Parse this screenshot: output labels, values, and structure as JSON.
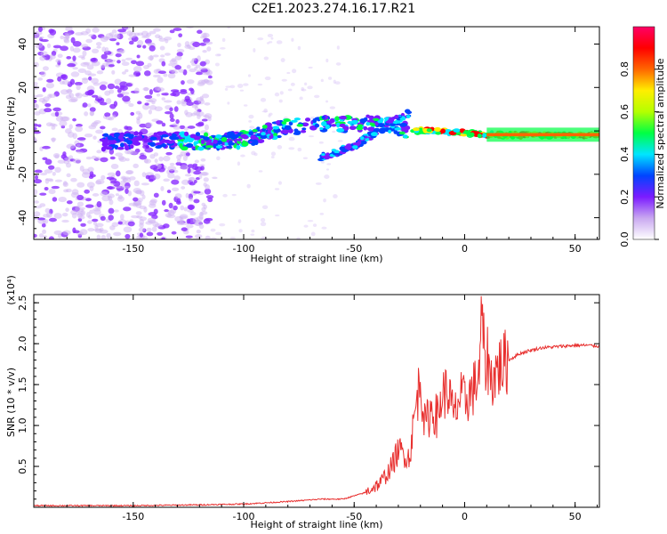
{
  "title": "C2E1.2023.274.16.17.R21",
  "chart_data": [
    {
      "type": "heatmap",
      "xlabel": "Height of straight line (km)",
      "ylabel": "Frequency (Hz)",
      "xlim": [
        -195,
        61
      ],
      "ylim": [
        -50,
        48
      ],
      "xticks": [
        -150,
        -100,
        -50,
        0,
        50
      ],
      "xtick_labels": [
        "-150",
        "-100",
        "-50",
        "0",
        "50"
      ],
      "yticks": [
        -40,
        -20,
        0,
        20,
        40
      ],
      "ytick_labels": [
        "-40",
        "-20",
        "0",
        "20",
        "40"
      ],
      "colorbar": {
        "label": "Normalized spectral amplitude",
        "range": [
          0,
          1
        ],
        "ticks": [
          0.0,
          0.2,
          0.4,
          0.6,
          0.8
        ],
        "tick_labels": [
          "0.0",
          "0.2",
          "0.4",
          "0.6",
          "0.8"
        ],
        "colors": [
          "#ffffff",
          "#c9a8f0",
          "#7b1bff",
          "#0044ff",
          "#00e5ff",
          "#00ff44",
          "#b4ff00",
          "#ffee00",
          "#ff6600",
          "#ff0000",
          "#ff0066"
        ]
      },
      "trace": {
        "x": [
          -160,
          -140,
          -120,
          -100,
          -80,
          -60,
          -40,
          -25,
          -15,
          0,
          20,
          40,
          60
        ],
        "y": [
          -5,
          -4,
          -5,
          -4,
          2,
          3,
          4,
          0,
          0,
          -1,
          -2,
          -2,
          -2
        ]
      },
      "branch": {
        "x": [
          -65,
          -50,
          -35,
          -25
        ],
        "y": [
          -12,
          -7,
          3,
          8
        ]
      }
    },
    {
      "type": "line",
      "xlabel": "Height of straight line (km)",
      "ylabel": "SNR (10 * v/v)",
      "yscale_label": "(x10⁴)",
      "xlim": [
        -195,
        61
      ],
      "ylim": [
        0,
        2.6
      ],
      "xticks": [
        -150,
        -100,
        -50,
        0,
        50
      ],
      "xtick_labels": [
        "-150",
        "-100",
        "-50",
        "0",
        "50"
      ],
      "yticks": [
        0.5,
        1.0,
        1.5,
        2.0,
        2.5
      ],
      "ytick_labels": [
        "0.5",
        "1.0",
        "1.5",
        "2.0",
        "2.5"
      ],
      "color": "#e8302f",
      "x": [
        -195,
        -150,
        -120,
        -100,
        -80,
        -65,
        -55,
        -45,
        -38,
        -33,
        -30,
        -27,
        -25,
        -23,
        -20,
        -18,
        -15,
        -12,
        -10,
        -7,
        -5,
        -2,
        0,
        3,
        5,
        7,
        8,
        9,
        10,
        12,
        15,
        20,
        25,
        30,
        35,
        40,
        45,
        50,
        55,
        61
      ],
      "y": [
        0.02,
        0.02,
        0.03,
        0.04,
        0.07,
        0.1,
        0.1,
        0.18,
        0.3,
        0.5,
        0.7,
        0.65,
        0.6,
        1.05,
        1.6,
        1.0,
        1.2,
        1.1,
        1.4,
        1.4,
        1.1,
        1.35,
        1.3,
        1.4,
        1.5,
        1.7,
        2.55,
        1.6,
        1.9,
        1.55,
        1.7,
        1.8,
        1.88,
        1.92,
        1.95,
        1.96,
        1.97,
        1.98,
        1.98,
        1.97
      ]
    }
  ]
}
